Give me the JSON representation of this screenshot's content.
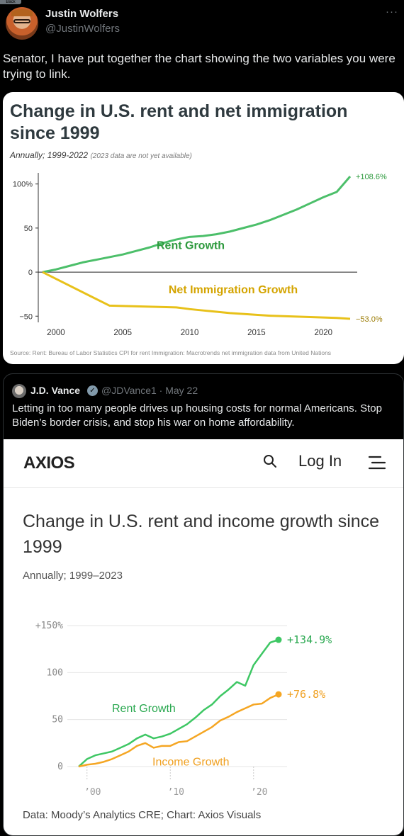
{
  "back_label": "Back",
  "author": {
    "name": "Justin Wolfers",
    "handle": "@JustinWolfers",
    "more": "···"
  },
  "tweet": {
    "text": "Senator, I have put together the chart showing the two variables you were trying to link."
  },
  "chart1": {
    "title": "Change in U.S. rent and net immigration since 1999",
    "subtitle": "Annually; 1999-2022",
    "subtitle_note": "(2023 data are not yet available)",
    "source": "Source: Rent: Bureau of Labor Statistics CPI for rent Immigration: Macrotrends net immigration data from United Nations",
    "colors": {
      "rent": "#4cbf6a",
      "immigration": "#e8c11a",
      "rent_label": "#2e9a3e",
      "immigration_label": "#d4a400",
      "end_label_rent": "#2e9a3e",
      "end_label_imm": "#9a7a00"
    }
  },
  "chart_data": [
    {
      "type": "line",
      "title": "Change in U.S. rent and net immigration since 1999",
      "xlim": [
        1999,
        2022
      ],
      "ylim": [
        -53,
        108.6
      ],
      "y_ticks": [
        {
          "value": 100,
          "label": "100%"
        },
        {
          "value": 50,
          "label": "50"
        },
        {
          "value": 0,
          "label": "0"
        },
        {
          "value": -50,
          "label": "−50"
        }
      ],
      "x_ticks": [
        {
          "value": 2000,
          "label": "2000"
        },
        {
          "value": 2005,
          "label": "2005"
        },
        {
          "value": 2010,
          "label": "2010"
        },
        {
          "value": 2015,
          "label": "2015"
        },
        {
          "value": 2020,
          "label": "2020"
        }
      ],
      "series": [
        {
          "name": "Rent Growth",
          "end_label": "+108.6%",
          "x": [
            1999,
            2000,
            2001,
            2002,
            2003,
            2004,
            2005,
            2006,
            2007,
            2008,
            2009,
            2010,
            2011,
            2012,
            2013,
            2014,
            2015,
            2016,
            2017,
            2018,
            2019,
            2020,
            2021,
            2022
          ],
          "values": [
            0,
            3,
            7,
            11,
            14,
            17,
            20,
            24,
            28,
            33,
            37,
            40,
            41,
            43,
            46,
            50,
            54,
            59,
            65,
            71,
            78,
            85,
            91,
            108.6
          ]
        },
        {
          "name": "Net Immigration Growth",
          "end_label": "−53.0%",
          "x": [
            1999,
            2004,
            2009,
            2010,
            2011,
            2012,
            2013,
            2014,
            2015,
            2016,
            2017,
            2018,
            2019,
            2020,
            2021,
            2022
          ],
          "values": [
            0,
            -38,
            -40,
            -42,
            -43.5,
            -45,
            -46.5,
            -47.5,
            -48.5,
            -49.5,
            -50,
            -50.5,
            -51,
            -51.5,
            -52,
            -53
          ]
        }
      ]
    },
    {
      "type": "line",
      "title": "Change in U.S. rent and income growth since 1999",
      "xlim": [
        1999,
        2023
      ],
      "ylim": [
        0,
        150
      ],
      "y_ticks": [
        {
          "value": 150,
          "label": "+150%"
        },
        {
          "value": 100,
          "label": "100"
        },
        {
          "value": 50,
          "label": "50"
        },
        {
          "value": 0,
          "label": "0"
        }
      ],
      "x_ticks": [
        {
          "value": 2000,
          "label": "’00"
        },
        {
          "value": 2010,
          "label": "’10"
        },
        {
          "value": 2020,
          "label": "’20"
        }
      ],
      "series": [
        {
          "name": "Rent Growth",
          "end_label": "+134.9%",
          "x": [
            1999,
            2000,
            2001,
            2002,
            2003,
            2004,
            2005,
            2006,
            2007,
            2008,
            2009,
            2010,
            2011,
            2012,
            2013,
            2014,
            2015,
            2016,
            2017,
            2018,
            2019,
            2020,
            2021,
            2022,
            2023
          ],
          "values": [
            0,
            8,
            12,
            14,
            16,
            20,
            24,
            30,
            34,
            30,
            32,
            35,
            40,
            45,
            52,
            60,
            66,
            75,
            82,
            90,
            86,
            108,
            120,
            132,
            134.9
          ]
        },
        {
          "name": "Income Growth",
          "end_label": "+76.8%",
          "x": [
            1999,
            2000,
            2001,
            2002,
            2003,
            2004,
            2005,
            2006,
            2007,
            2008,
            2009,
            2010,
            2011,
            2012,
            2013,
            2014,
            2015,
            2016,
            2017,
            2018,
            2019,
            2020,
            2021,
            2022,
            2023
          ],
          "values": [
            0,
            2,
            3,
            5,
            8,
            12,
            16,
            22,
            25,
            20,
            22,
            22,
            26,
            27,
            32,
            37,
            42,
            49,
            53,
            58,
            62,
            66,
            67,
            73,
            76.8
          ]
        }
      ]
    }
  ],
  "quoted": {
    "name": "J.D. Vance",
    "verified_icon": "check-badge-icon",
    "meta": "@JDVance1 · May 22",
    "text": "Letting in too many people drives up housing costs for normal Americans. Stop Biden’s border crisis, and stop his war on home affordability."
  },
  "axios": {
    "logo": "AXIOS",
    "login": "Log In",
    "title": "Change in U.S. rent and income growth since 1999",
    "subtitle": "Annually; 1999–2023",
    "source": "Data: Moody’s Analytics CRE; Chart: Axios Visuals",
    "colors": {
      "rent": "#3ec764",
      "income": "#f5a623",
      "rent_label": "#2aa850",
      "income_label": "#f0a020",
      "axis": "#777"
    }
  }
}
